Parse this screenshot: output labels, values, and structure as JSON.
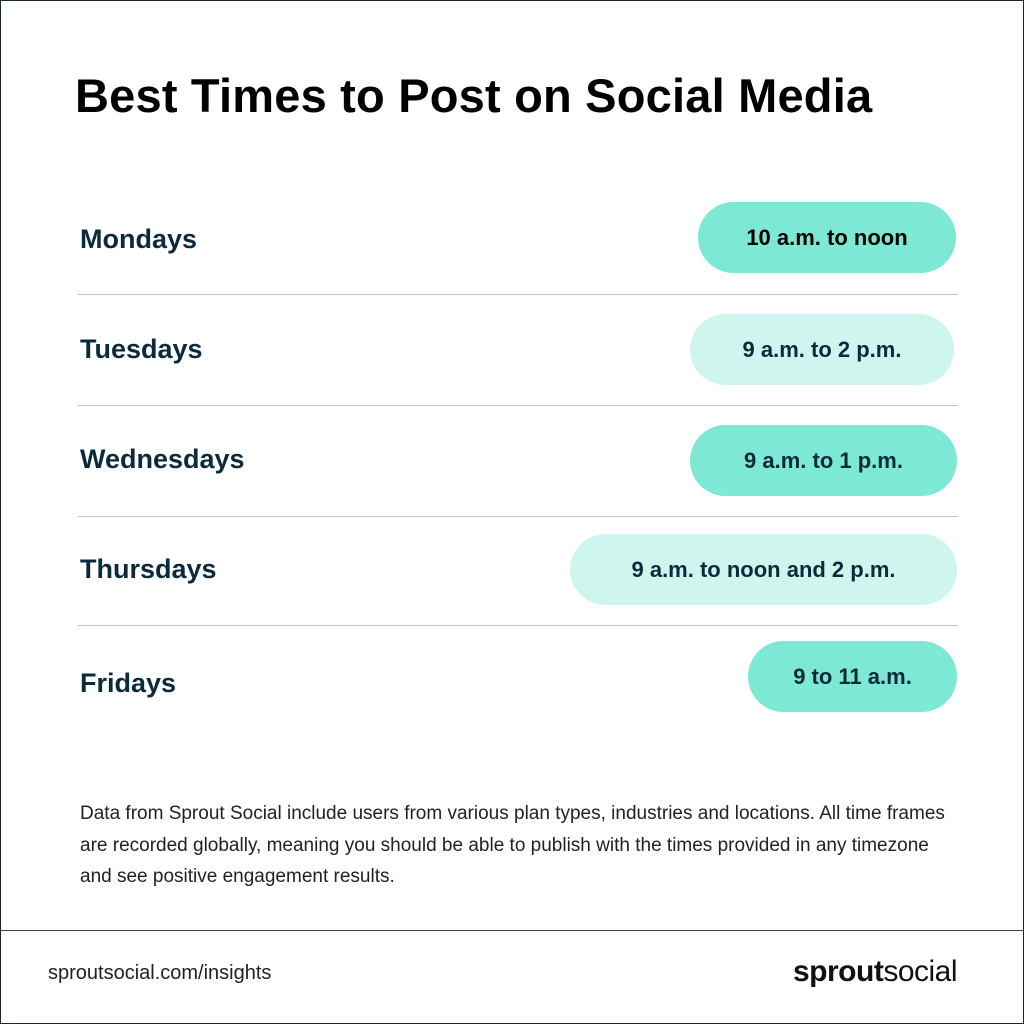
{
  "title": "Best Times to Post on Social Media",
  "rows": [
    {
      "day": "Mondays",
      "time": "10 a.m. to noon",
      "shade": "dark"
    },
    {
      "day": "Tuesdays",
      "time": "9 a.m. to 2 p.m.",
      "shade": "light"
    },
    {
      "day": "Wednesdays",
      "time": "9 a.m. to 1 p.m.",
      "shade": "dark"
    },
    {
      "day": "Thursdays",
      "time": "9 a.m. to noon and 2 p.m.",
      "shade": "light"
    },
    {
      "day": "Fridays",
      "time": "9 to 11 a.m.",
      "shade": "dark"
    }
  ],
  "note": "Data from Sprout Social include users from various plan types, industries and locations. All time frames are recorded globally, meaning you should be able to publish with the times provided in any timezone and see positive engagement results.",
  "footer": {
    "url": "sproutsocial.com/insights",
    "logo_bold": "sprout",
    "logo_light": "social"
  },
  "colors": {
    "pill_dark": "#7de8d4",
    "pill_light": "#cff6ee",
    "day_text": "#0b2a3b"
  }
}
